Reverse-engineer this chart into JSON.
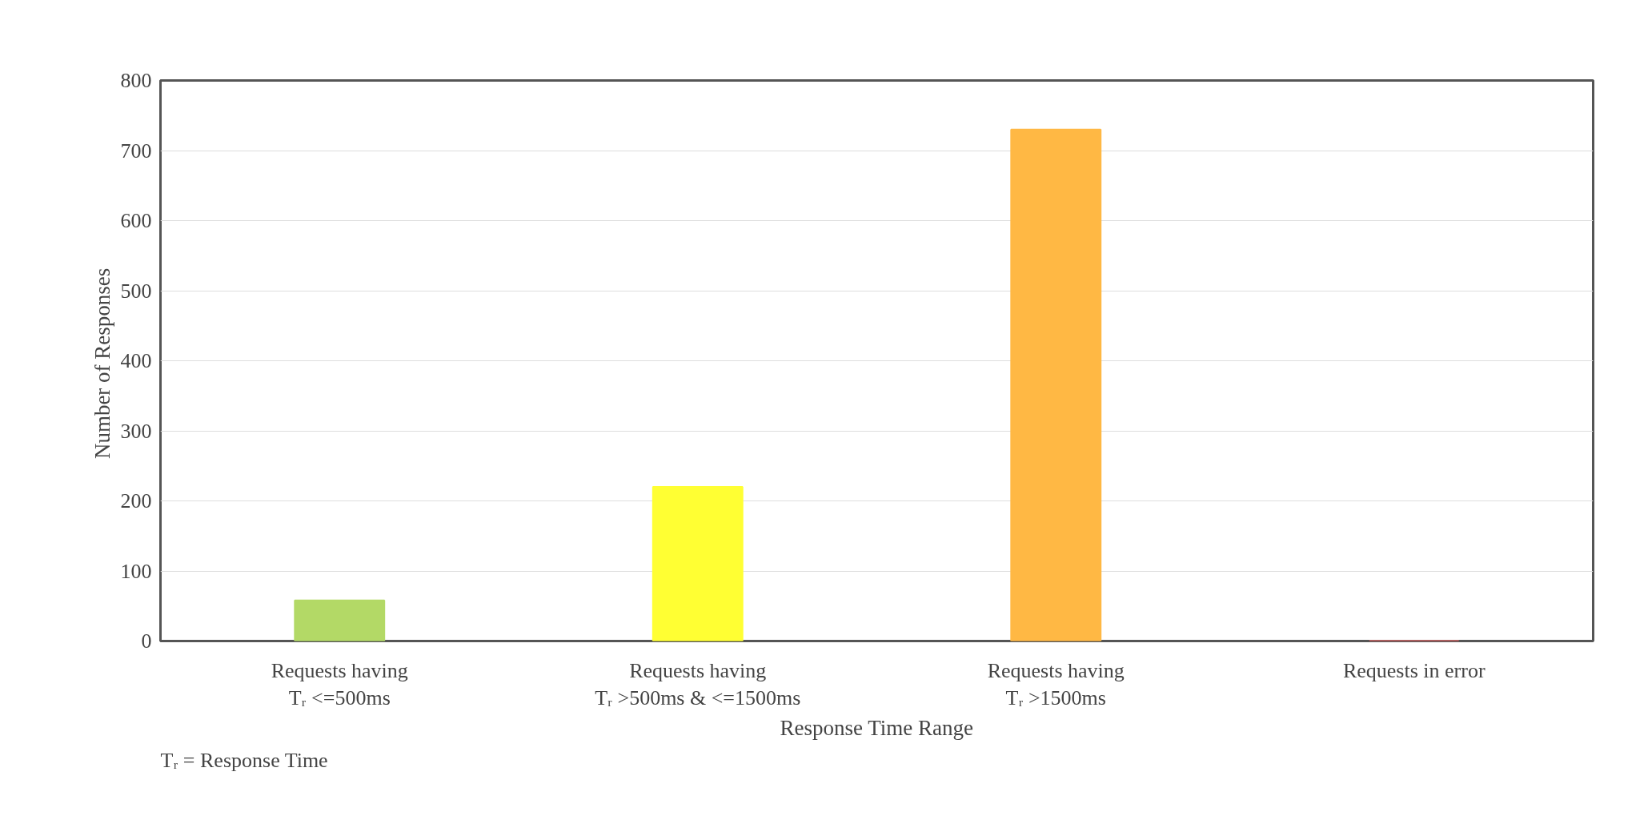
{
  "chart_data": {
    "type": "bar",
    "xlabel": "Response Time Range",
    "ylabel": "Number of  Responses",
    "categories": [
      "Requests having\nTᵣ <=500ms",
      "Requests having\nTᵣ >500ms & <=1500ms",
      "Requests having\nTᵣ >1500ms",
      "Requests in error"
    ],
    "values": [
      58,
      220,
      730,
      0
    ],
    "colors": [
      "#b3d966",
      "#ffff33",
      "#ffb844",
      "#ff6666"
    ],
    "ylim": [
      0,
      800
    ],
    "yticks": [
      0,
      100,
      200,
      300,
      400,
      500,
      600,
      700,
      800
    ],
    "grid": "y",
    "annotations": [
      "Tᵣ = Response Time"
    ]
  }
}
